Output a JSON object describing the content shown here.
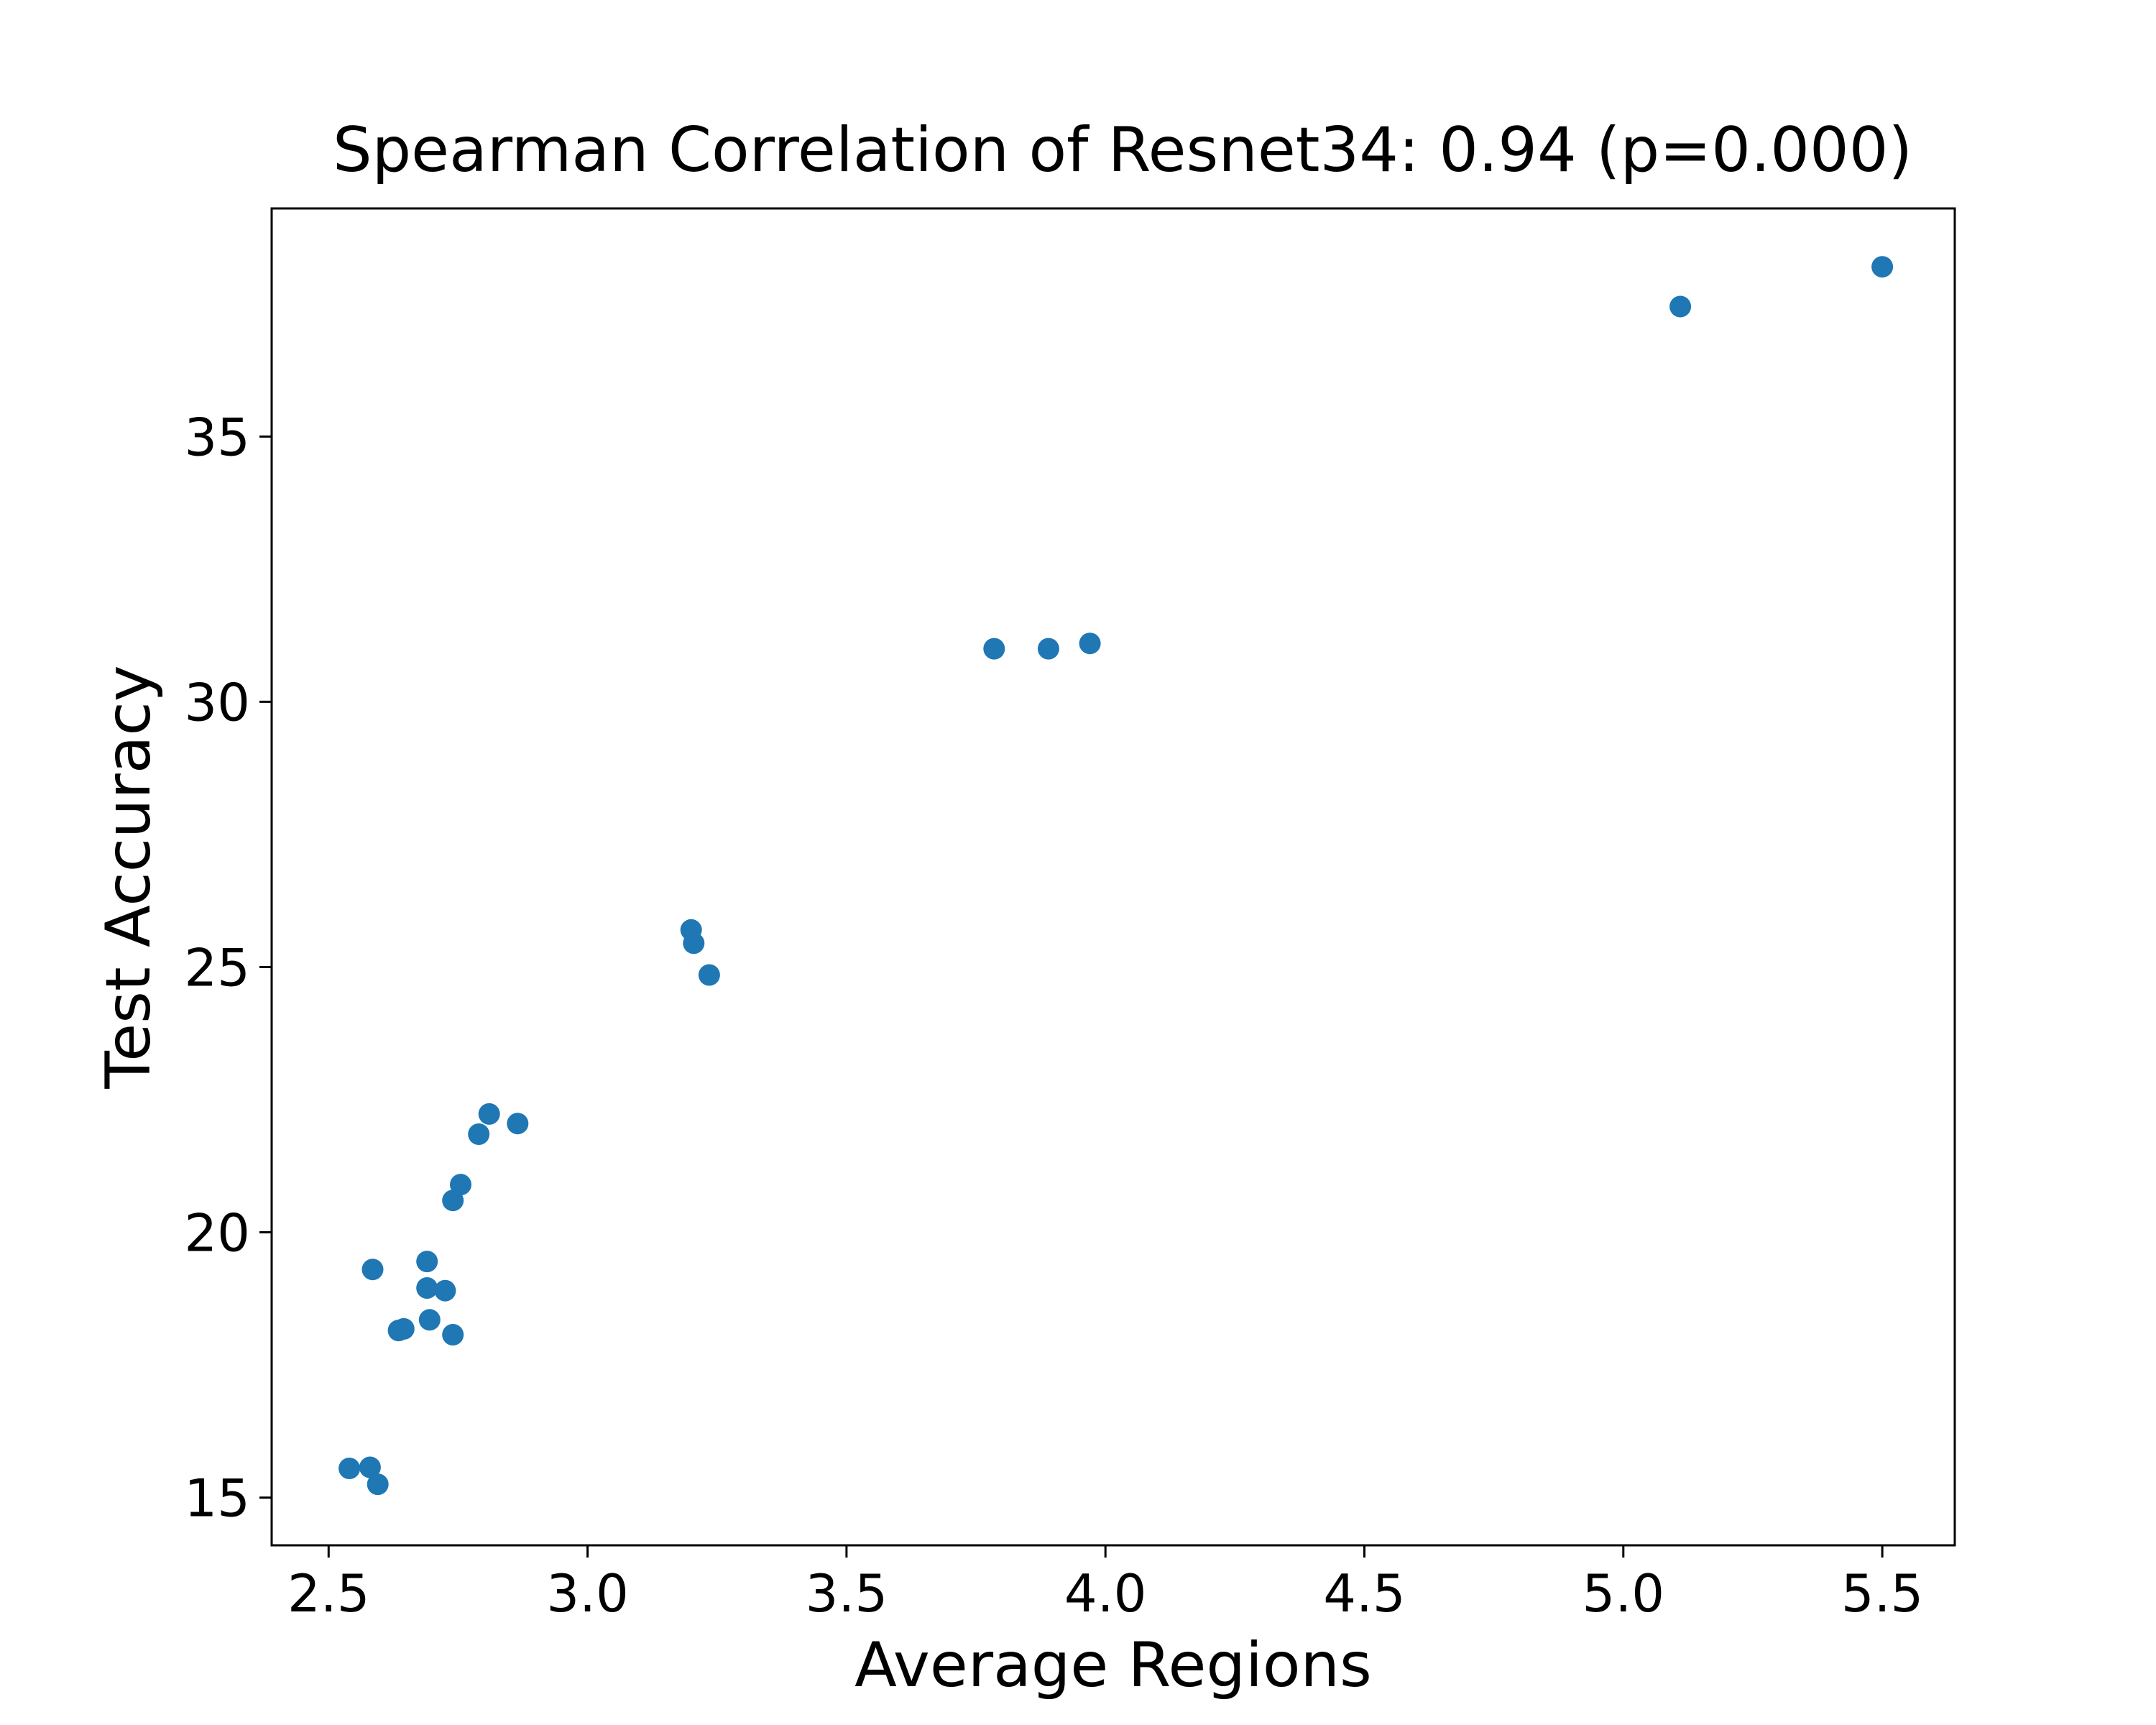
{
  "chart_data": {
    "type": "scatter",
    "title": "Spearman Correlation of Resnet34: 0.94 (p=0.000)",
    "xlabel": "Average Regions",
    "ylabel": "Test Accuracy",
    "xlim": [
      2.39,
      5.64
    ],
    "ylim": [
      14.1,
      39.3
    ],
    "xticks": [
      2.5,
      3.0,
      3.5,
      4.0,
      4.5,
      5.0,
      5.5
    ],
    "xtick_labels": [
      "2.5",
      "3.0",
      "3.5",
      "4.0",
      "4.5",
      "5.0",
      "5.5"
    ],
    "yticks": [
      15,
      20,
      25,
      30,
      35
    ],
    "ytick_labels": [
      "15",
      "20",
      "25",
      "30",
      "35"
    ],
    "grid": false,
    "marker_color": "#1f77b4",
    "points": [
      {
        "x": 2.54,
        "y": 15.55
      },
      {
        "x": 2.58,
        "y": 15.57
      },
      {
        "x": 2.595,
        "y": 15.25
      },
      {
        "x": 2.585,
        "y": 19.3
      },
      {
        "x": 2.635,
        "y": 18.15
      },
      {
        "x": 2.645,
        "y": 18.18
      },
      {
        "x": 2.69,
        "y": 19.45
      },
      {
        "x": 2.69,
        "y": 18.95
      },
      {
        "x": 2.695,
        "y": 18.35
      },
      {
        "x": 2.725,
        "y": 18.9
      },
      {
        "x": 2.74,
        "y": 18.07
      },
      {
        "x": 2.74,
        "y": 20.6
      },
      {
        "x": 2.755,
        "y": 20.9
      },
      {
        "x": 2.79,
        "y": 21.85
      },
      {
        "x": 2.81,
        "y": 22.23
      },
      {
        "x": 2.865,
        "y": 22.05
      },
      {
        "x": 3.2,
        "y": 25.7
      },
      {
        "x": 3.205,
        "y": 25.45
      },
      {
        "x": 3.235,
        "y": 24.85
      },
      {
        "x": 3.785,
        "y": 31.0
      },
      {
        "x": 3.89,
        "y": 31.0
      },
      {
        "x": 3.97,
        "y": 31.1
      },
      {
        "x": 5.11,
        "y": 37.45
      },
      {
        "x": 5.5,
        "y": 38.2
      }
    ]
  }
}
